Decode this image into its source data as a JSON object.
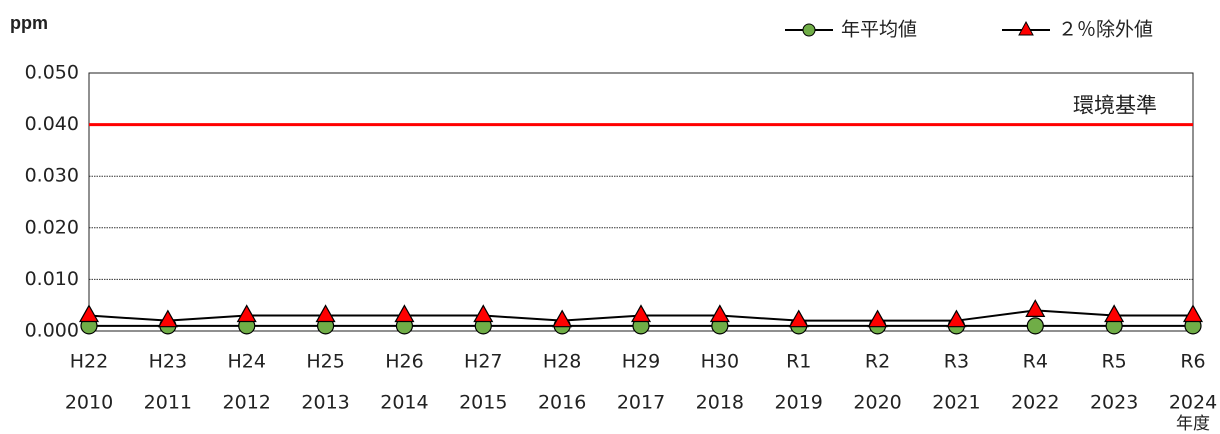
{
  "chart_data": {
    "type": "line",
    "y_label": "ppm",
    "x_label": "年度",
    "categories": [
      [
        "H22",
        "2010"
      ],
      [
        "H23",
        "2011"
      ],
      [
        "H24",
        "2012"
      ],
      [
        "H25",
        "2013"
      ],
      [
        "H26",
        "2014"
      ],
      [
        "H27",
        "2015"
      ],
      [
        "H28",
        "2016"
      ],
      [
        "H29",
        "2017"
      ],
      [
        "H30",
        "2018"
      ],
      [
        "R1",
        "2019"
      ],
      [
        "R2",
        "2020"
      ],
      [
        "R3",
        "2021"
      ],
      [
        "R4",
        "2022"
      ],
      [
        "R5",
        "2023"
      ],
      [
        "R6",
        "2024"
      ]
    ],
    "series": [
      {
        "name": "年平均値",
        "color": "#70ad47",
        "marker": "circle",
        "values": [
          0.001,
          0.001,
          0.001,
          0.001,
          0.001,
          0.001,
          0.001,
          0.001,
          0.001,
          0.001,
          0.001,
          0.001,
          0.001,
          0.001,
          0.001
        ]
      },
      {
        "name": "２％除外値",
        "color": "#ff0000",
        "marker": "triangle",
        "values": [
          0.003,
          0.002,
          0.003,
          0.003,
          0.003,
          0.003,
          0.002,
          0.003,
          0.003,
          0.002,
          0.002,
          0.002,
          0.004,
          0.003,
          0.003
        ]
      }
    ],
    "reference_line": {
      "value": 0.04,
      "label": "環境基準",
      "color": "#ff0000"
    },
    "ylim": [
      0,
      0.05
    ],
    "yticks": [
      {
        "value": 0,
        "label": "0.000"
      },
      {
        "value": 0.01,
        "label": "0.010"
      },
      {
        "value": 0.02,
        "label": "0.020"
      },
      {
        "value": 0.03,
        "label": "0.030"
      },
      {
        "value": 0.04,
        "label": "0.040"
      },
      {
        "value": 0.05,
        "label": "0.050"
      }
    ],
    "grid": true,
    "legend": "top-right"
  }
}
